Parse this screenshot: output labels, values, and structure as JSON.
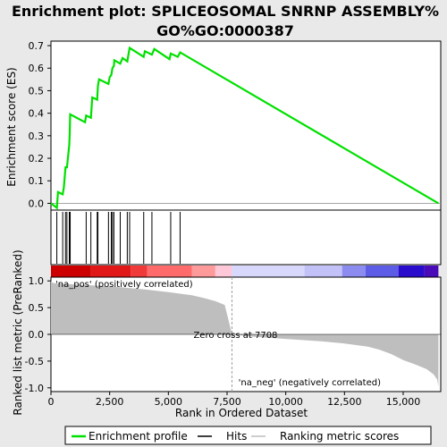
{
  "title_line1": "Enrichment plot: SPLICEOSOMAL SNRNP ASSEMBLY%",
  "title_line2": "GO%GO:0000387",
  "colors": {
    "es_line": "#00e000",
    "hit_line": "#000000",
    "metric_fill": "#bebebe",
    "zero_cross": "#a0a0a0",
    "pos_label": "#cc0000",
    "neg_label": "#0000cc",
    "background": "#e9e9e9",
    "panel_bg": "#ffffff"
  },
  "legend": {
    "enrichment_profile": "Enrichment profile",
    "hits": "Hits",
    "ranking_metric_scores": "Ranking metric scores"
  },
  "chart_data": [
    {
      "type": "line",
      "name": "enrichment-score",
      "ylabel": "Enrichment score (ES)",
      "xlim": [
        0,
        16600
      ],
      "ylim": [
        -0.03,
        0.72
      ],
      "yticks": [
        0.0,
        0.1,
        0.2,
        0.3,
        0.4,
        0.5,
        0.6,
        0.7
      ],
      "ytick_labels": [
        "0.0",
        "0.1",
        "0.2",
        "0.3",
        "0.4",
        "0.5",
        "0.6",
        "0.7"
      ],
      "grid": false,
      "x": [
        0,
        250,
        300,
        500,
        550,
        620,
        680,
        780,
        800,
        820,
        1450,
        1500,
        1700,
        1760,
        1970,
        2000,
        2050,
        2450,
        2500,
        2570,
        2620,
        2680,
        2700,
        2950,
        3050,
        3250,
        3300,
        3350,
        3950,
        4000,
        4300,
        4400,
        5050,
        5100,
        5400,
        5500,
        16500
      ],
      "y": [
        0.0,
        -0.02,
        0.05,
        0.04,
        0.07,
        0.16,
        0.16,
        0.26,
        0.31,
        0.395,
        0.36,
        0.39,
        0.38,
        0.47,
        0.46,
        0.52,
        0.55,
        0.53,
        0.56,
        0.57,
        0.6,
        0.61,
        0.635,
        0.62,
        0.645,
        0.63,
        0.66,
        0.69,
        0.65,
        0.675,
        0.66,
        0.685,
        0.64,
        0.665,
        0.65,
        0.67,
        0.0
      ]
    },
    {
      "type": "hits",
      "name": "hits",
      "x": [
        250,
        500,
        620,
        680,
        780,
        820,
        1500,
        1700,
        1970,
        2000,
        2450,
        2570,
        2620,
        2680,
        2950,
        3250,
        3350,
        3950,
        4300,
        5100,
        5500
      ]
    },
    {
      "type": "area",
      "name": "ranked-list-metric",
      "ylabel": "Ranked list metric (PreRanked)",
      "xlabel": "Rank in Ordered Dataset",
      "xlim": [
        0,
        16600
      ],
      "ylim": [
        -1.07,
        1.07
      ],
      "xticks": [
        0,
        2500,
        5000,
        7500,
        10000,
        12500,
        15000
      ],
      "xtick_labels": [
        "0",
        "2,500",
        "5,000",
        "7,500",
        "10,000",
        "12,500",
        "15,000"
      ],
      "yticks": [
        1.0,
        0.5,
        0.0,
        -0.5,
        -1.0
      ],
      "ytick_labels": [
        "1.0",
        "0.5",
        "0.0",
        "-0.5",
        "-1.0"
      ],
      "x": [
        0,
        30,
        100,
        300,
        700,
        1200,
        2000,
        3000,
        4000,
        5000,
        6000,
        6500,
        7000,
        7400,
        7708,
        8500,
        9500,
        10500,
        11500,
        12500,
        13500,
        14000,
        14500,
        15000,
        15500,
        16000,
        16300,
        16450,
        16500
      ],
      "y": [
        1.0,
        0.98,
        0.96,
        0.95,
        0.94,
        0.93,
        0.91,
        0.88,
        0.84,
        0.79,
        0.73,
        0.68,
        0.62,
        0.55,
        0.0,
        -0.04,
        -0.07,
        -0.1,
        -0.13,
        -0.17,
        -0.23,
        -0.29,
        -0.37,
        -0.48,
        -0.56,
        -0.65,
        -0.75,
        -0.85,
        -0.98
      ],
      "zero_cross_rank": 7708,
      "zero_cross_label": "Zero cross at 7708",
      "pos_label": "'na_pos' (positively correlated)",
      "neg_label": "'na_neg' (negatively correlated)"
    }
  ],
  "colorbar": [
    {
      "start": 0,
      "end": 1700,
      "color": "#cc0000"
    },
    {
      "start": 1700,
      "end": 3400,
      "color": "#e01818"
    },
    {
      "start": 3400,
      "end": 4100,
      "color": "#f03a3a"
    },
    {
      "start": 4100,
      "end": 6000,
      "color": "#ff6b6b"
    },
    {
      "start": 6000,
      "end": 7000,
      "color": "#ff9a9a"
    },
    {
      "start": 7000,
      "end": 7700,
      "color": "#ffc8d8"
    },
    {
      "start": 7700,
      "end": 10800,
      "color": "#d8d8fc"
    },
    {
      "start": 10800,
      "end": 12400,
      "color": "#c2c2f8"
    },
    {
      "start": 12400,
      "end": 13400,
      "color": "#8c8cf0"
    },
    {
      "start": 13400,
      "end": 14800,
      "color": "#5c5ce6"
    },
    {
      "start": 14800,
      "end": 15900,
      "color": "#2a0ccc"
    },
    {
      "start": 15900,
      "end": 16500,
      "color": "#4a0cb8"
    }
  ]
}
